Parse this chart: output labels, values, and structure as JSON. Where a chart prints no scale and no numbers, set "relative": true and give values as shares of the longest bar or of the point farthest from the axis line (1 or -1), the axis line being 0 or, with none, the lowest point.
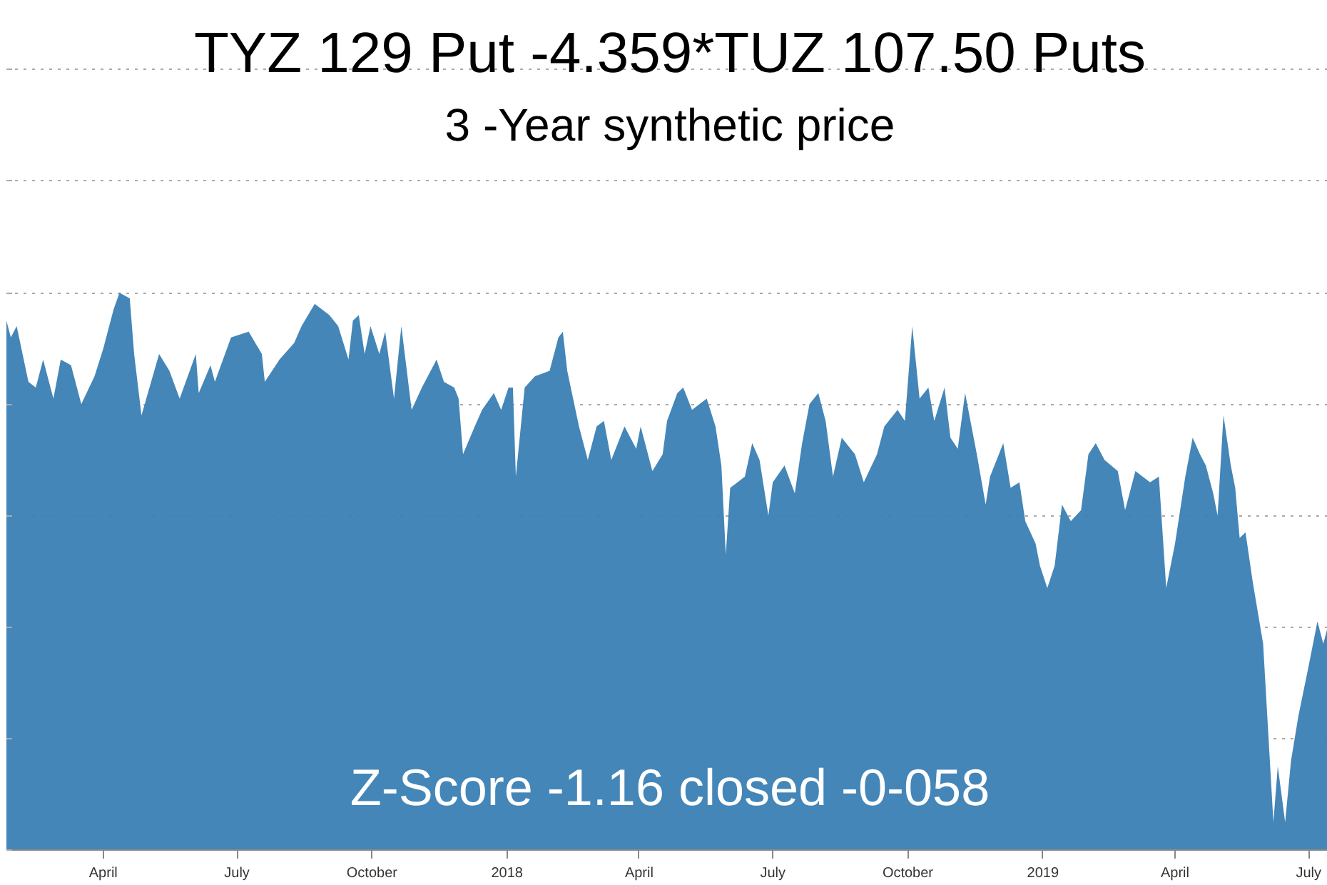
{
  "chart_data": {
    "type": "area",
    "title": "TYZ 129 Put -4.359*TUZ 107.50 Puts",
    "subtitle": "3 -Year synthetic price",
    "annotations": [
      "Z-Score -1.16 closed -0-058"
    ],
    "relative": true,
    "grid": "y",
    "color": "#3a7fb4",
    "xlim": [
      "2017-01-25",
      "2019-07-14"
    ],
    "xticks": [
      {
        "value": "2017-04-01",
        "label": "April"
      },
      {
        "value": "2017-07-01",
        "label": "July"
      },
      {
        "value": "2017-10-01",
        "label": "October"
      },
      {
        "value": "2018-01-01",
        "label": "2018"
      },
      {
        "value": "2018-04-01",
        "label": "April"
      },
      {
        "value": "2018-07-01",
        "label": "July"
      },
      {
        "value": "2018-10-01",
        "label": "October"
      },
      {
        "value": "2019-01-01",
        "label": "2019"
      },
      {
        "value": "2019-04-01",
        "label": "April"
      },
      {
        "value": "2019-07-01",
        "label": "July"
      }
    ],
    "x": [
      "2017-01-25",
      "2017-01-28",
      "2017-02-01",
      "2017-02-09",
      "2017-02-14",
      "2017-02-19",
      "2017-02-26",
      "2017-03-03",
      "2017-03-10",
      "2017-03-17",
      "2017-03-26",
      "2017-04-01",
      "2017-04-08",
      "2017-04-12",
      "2017-04-19",
      "2017-04-22",
      "2017-04-27",
      "2017-05-09",
      "2017-05-16",
      "2017-05-23",
      "2017-06-03",
      "2017-06-05",
      "2017-06-13",
      "2017-06-16",
      "2017-06-27",
      "2017-07-09",
      "2017-07-18",
      "2017-07-20",
      "2017-07-30",
      "2017-08-09",
      "2017-08-14",
      "2017-08-23",
      "2017-09-02",
      "2017-09-08",
      "2017-09-15",
      "2017-09-18",
      "2017-09-22",
      "2017-09-26",
      "2017-09-30",
      "2017-10-06",
      "2017-10-10",
      "2017-10-16",
      "2017-10-21",
      "2017-10-28",
      "2017-11-04",
      "2017-11-14",
      "2017-11-19",
      "2017-11-26",
      "2017-11-29",
      "2017-12-02",
      "2017-12-10",
      "2017-12-15",
      "2017-12-23",
      "2017-12-28",
      "2018-01-02",
      "2018-01-05",
      "2018-01-07",
      "2018-01-13",
      "2018-01-20",
      "2018-01-30",
      "2018-02-05",
      "2018-02-08",
      "2018-02-11",
      "2018-02-19",
      "2018-02-25",
      "2018-03-03",
      "2018-03-08",
      "2018-03-13",
      "2018-03-22",
      "2018-03-30",
      "2018-04-02",
      "2018-04-10",
      "2018-04-17",
      "2018-04-20",
      "2018-04-27",
      "2018-05-01",
      "2018-05-07",
      "2018-05-17",
      "2018-05-23",
      "2018-05-27",
      "2018-05-30",
      "2018-06-02",
      "2018-06-07",
      "2018-06-12",
      "2018-06-17",
      "2018-06-22",
      "2018-06-28",
      "2018-07-01",
      "2018-07-09",
      "2018-07-16",
      "2018-07-21",
      "2018-07-26",
      "2018-08-01",
      "2018-08-06",
      "2018-08-11",
      "2018-08-17",
      "2018-08-26",
      "2018-09-01",
      "2018-09-10",
      "2018-09-15",
      "2018-09-24",
      "2018-09-29",
      "2018-10-04",
      "2018-10-09",
      "2018-10-15",
      "2018-10-19",
      "2018-10-26",
      "2018-10-30",
      "2018-11-04",
      "2018-11-09",
      "2018-11-17",
      "2018-11-23",
      "2018-11-26",
      "2018-12-05",
      "2018-12-10",
      "2018-12-16",
      "2018-12-20",
      "2018-12-27",
      "2018-12-30",
      "2019-01-04",
      "2019-01-09",
      "2019-01-14",
      "2019-01-20",
      "2019-01-27",
      "2019-02-01",
      "2019-02-06",
      "2019-02-12",
      "2019-02-21",
      "2019-02-26",
      "2019-03-05",
      "2019-03-15",
      "2019-03-21",
      "2019-03-26",
      "2019-04-01",
      "2019-04-08",
      "2019-04-13",
      "2019-04-18",
      "2019-04-22",
      "2019-04-27",
      "2019-04-30",
      "2019-05-04",
      "2019-05-09",
      "2019-05-12",
      "2019-05-15",
      "2019-05-19",
      "2019-05-24",
      "2019-05-31",
      "2019-06-07",
      "2019-06-10",
      "2019-06-15",
      "2019-06-19",
      "2019-06-24",
      "2019-07-01",
      "2019-07-07",
      "2019-07-11",
      "2019-07-14"
    ],
    "values": [
      0.95,
      0.92,
      0.94,
      0.84,
      0.83,
      0.88,
      0.81,
      0.88,
      0.87,
      0.8,
      0.85,
      0.9,
      0.97,
      1.0,
      0.99,
      0.89,
      0.78,
      0.89,
      0.86,
      0.81,
      0.89,
      0.82,
      0.87,
      0.84,
      0.92,
      0.93,
      0.89,
      0.84,
      0.88,
      0.91,
      0.94,
      0.98,
      0.96,
      0.94,
      0.88,
      0.95,
      0.96,
      0.89,
      0.94,
      0.89,
      0.93,
      0.81,
      0.94,
      0.79,
      0.83,
      0.88,
      0.84,
      0.83,
      0.81,
      0.71,
      0.76,
      0.79,
      0.82,
      0.79,
      0.83,
      0.83,
      0.67,
      0.83,
      0.85,
      0.86,
      0.92,
      0.93,
      0.86,
      0.76,
      0.7,
      0.76,
      0.77,
      0.7,
      0.76,
      0.72,
      0.76,
      0.68,
      0.71,
      0.77,
      0.82,
      0.83,
      0.79,
      0.81,
      0.76,
      0.69,
      0.53,
      0.65,
      0.66,
      0.67,
      0.73,
      0.7,
      0.6,
      0.66,
      0.69,
      0.64,
      0.73,
      0.8,
      0.82,
      0.77,
      0.67,
      0.74,
      0.71,
      0.66,
      0.71,
      0.76,
      0.79,
      0.77,
      0.94,
      0.81,
      0.83,
      0.77,
      0.83,
      0.74,
      0.72,
      0.82,
      0.71,
      0.62,
      0.67,
      0.73,
      0.65,
      0.66,
      0.59,
      0.55,
      0.51,
      0.47,
      0.51,
      0.62,
      0.59,
      0.61,
      0.71,
      0.73,
      0.7,
      0.68,
      0.61,
      0.68,
      0.66,
      0.67,
      0.47,
      0.55,
      0.67,
      0.74,
      0.71,
      0.69,
      0.64,
      0.6,
      0.78,
      0.69,
      0.65,
      0.56,
      0.57,
      0.48,
      0.37,
      0.05,
      0.15,
      0.05,
      0.16,
      0.24,
      0.33,
      0.41,
      0.37,
      0.4
    ]
  }
}
